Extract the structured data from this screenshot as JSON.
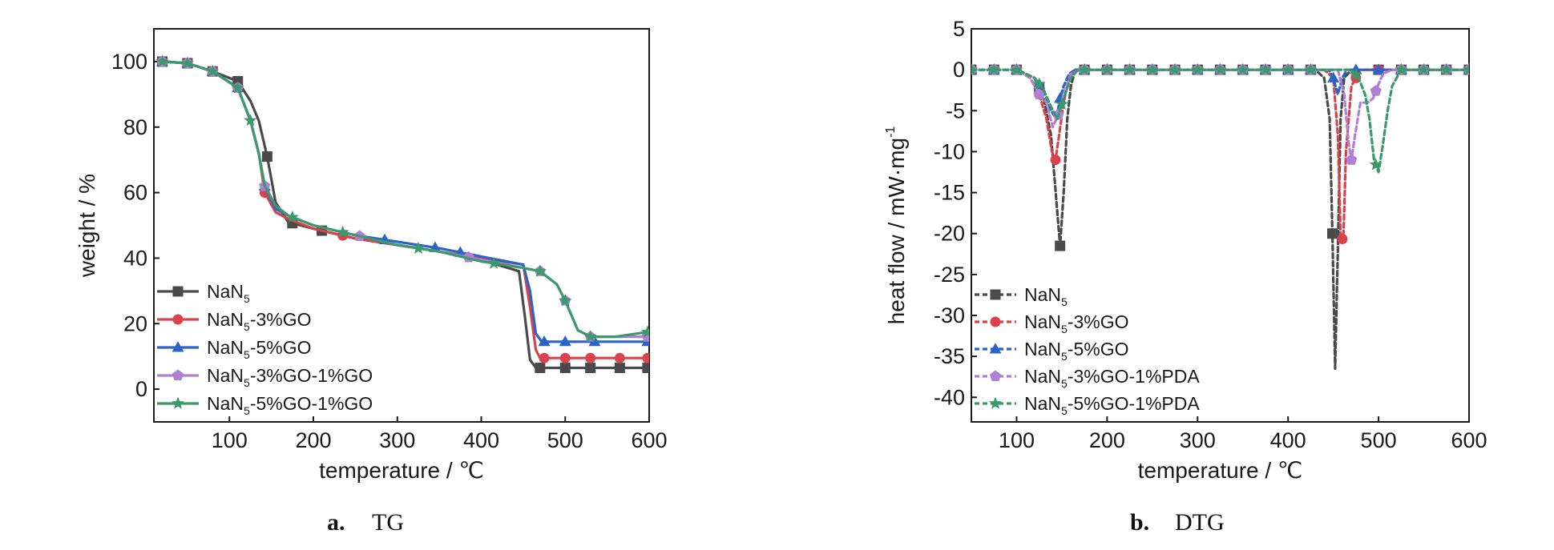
{
  "chart_data": [
    {
      "type": "line",
      "caption_letter": "a.",
      "caption_text": "TG",
      "xlabel": "temperature / ℃",
      "ylabel": "weight / %",
      "xlim": [
        10,
        600
      ],
      "ylim": [
        -10,
        110
      ],
      "xticks": [
        100,
        200,
        300,
        400,
        500,
        600
      ],
      "yticks": [
        0,
        20,
        40,
        60,
        80,
        100
      ],
      "legend_position": "bottom-left",
      "series": [
        {
          "base": "NaN",
          "sub": "5",
          "suffix": "",
          "color": "#4a4a4a",
          "marker": "square",
          "x": [
            20,
            50,
            80,
            110,
            125,
            135,
            145,
            155,
            170,
            200,
            250,
            300,
            350,
            400,
            445,
            452,
            458,
            465,
            480,
            520,
            560,
            600
          ],
          "y": [
            100,
            99.5,
            97,
            94,
            88,
            82,
            71,
            57,
            51,
            49,
            46,
            44,
            42,
            39.5,
            36,
            22,
            9,
            6.5,
            6.5,
            6.5,
            6.5,
            6.5
          ],
          "markers_x": [
            20,
            50,
            80,
            110,
            145,
            175,
            210,
            470,
            500,
            530,
            565,
            598
          ]
        },
        {
          "base": "NaN",
          "sub": "5",
          "suffix": "-3%GO",
          "color": "#d9434b",
          "marker": "circle",
          "x": [
            20,
            50,
            80,
            110,
            125,
            135,
            142,
            155,
            170,
            200,
            250,
            300,
            350,
            400,
            450,
            458,
            465,
            470,
            490,
            530,
            570,
            600
          ],
          "y": [
            100,
            99.5,
            97,
            92,
            82,
            72,
            60,
            54,
            52,
            49,
            46,
            44,
            42,
            40,
            38,
            25,
            12,
            9.5,
            9.5,
            9.5,
            9.5,
            9.5
          ],
          "markers_x": [
            20,
            50,
            80,
            110,
            142,
            235,
            475,
            500,
            530,
            565,
            598
          ]
        },
        {
          "base": "NaN",
          "sub": "5",
          "suffix": "-5%GO",
          "color": "#2b64c8",
          "marker": "triangle",
          "x": [
            20,
            50,
            80,
            110,
            125,
            135,
            142,
            155,
            170,
            200,
            250,
            300,
            350,
            400,
            450,
            458,
            465,
            472,
            500,
            540,
            580,
            600
          ],
          "y": [
            100,
            99.5,
            97,
            92,
            82,
            72,
            62,
            55,
            53,
            50,
            47,
            45,
            43,
            40.5,
            38,
            30,
            17,
            14.5,
            14.5,
            14.5,
            14.5,
            14.5
          ],
          "markers_x": [
            20,
            50,
            80,
            110,
            142,
            285,
            345,
            375,
            475,
            500,
            535,
            598
          ]
        },
        {
          "base": "NaN",
          "sub": "5",
          "suffix": "-3%GO-1%GO",
          "color": "#b07fd6",
          "marker": "pentagon",
          "x": [
            20,
            50,
            80,
            110,
            125,
            135,
            142,
            155,
            170,
            200,
            250,
            300,
            350,
            400,
            450,
            470,
            490,
            500,
            515,
            530,
            560,
            600
          ],
          "y": [
            100,
            99.5,
            97,
            92,
            82,
            72,
            62,
            56,
            53,
            50,
            47,
            44,
            42,
            39.5,
            37,
            36,
            32,
            27,
            18,
            16,
            16,
            16
          ],
          "markers_x": [
            20,
            50,
            80,
            110,
            142,
            255,
            385,
            470,
            500,
            530,
            598
          ]
        },
        {
          "base": "NaN",
          "sub": "5",
          "suffix": "-5%GO-1%GO",
          "color": "#3a9a6c",
          "marker": "star",
          "x": [
            20,
            50,
            80,
            110,
            125,
            135,
            142,
            155,
            170,
            200,
            250,
            300,
            350,
            400,
            450,
            470,
            490,
            500,
            515,
            530,
            560,
            600
          ],
          "y": [
            100,
            99.5,
            97,
            92,
            82,
            72,
            62,
            56,
            53,
            50,
            47,
            44,
            42,
            39,
            37,
            36,
            32,
            27,
            18,
            16,
            16,
            17.5
          ],
          "markers_x": [
            20,
            50,
            80,
            110,
            125,
            175,
            235,
            325,
            415,
            470,
            500,
            530,
            598
          ]
        }
      ]
    },
    {
      "type": "line",
      "caption_letter": "b.",
      "caption_text": "DTG",
      "xlabel": "temperature / ℃",
      "ylabel_main": "heat flow / mW·mg",
      "ylabel_sup": "-1",
      "xlim": [
        50,
        600
      ],
      "ylim": [
        -43,
        5
      ],
      "xticks": [
        100,
        200,
        300,
        400,
        500,
        600
      ],
      "yticks": [
        5,
        0,
        -5,
        -10,
        -15,
        -20,
        -25,
        -30,
        -35,
        -40
      ],
      "legend_position": "bottom-left",
      "series": [
        {
          "base": "NaN",
          "sub": "5",
          "suffix": "",
          "color": "#4a4a4a",
          "marker": "square",
          "x": [
            50,
            100,
            120,
            130,
            138,
            144,
            148,
            152,
            156,
            160,
            165,
            175,
            430,
            440,
            446,
            449,
            452,
            455,
            458,
            462,
            470,
            600
          ],
          "y": [
            0,
            0,
            -1,
            -3.5,
            -8,
            -16,
            -21.5,
            -15,
            -6,
            -2,
            0,
            0,
            0,
            -1,
            -6,
            -20,
            -36.5,
            -22,
            -6,
            -1,
            0,
            0
          ],
          "markers_x": [
            50,
            75,
            100,
            125,
            148,
            175,
            200,
            225,
            250,
            275,
            300,
            325,
            350,
            375,
            400,
            425,
            449,
            500,
            525,
            550,
            575,
            600
          ]
        },
        {
          "base": "NaN",
          "sub": "5",
          "suffix": "-3%GO",
          "color": "#d9434b",
          "marker": "circle",
          "x": [
            50,
            100,
            115,
            125,
            133,
            139,
            143,
            147,
            152,
            158,
            165,
            175,
            440,
            450,
            455,
            458,
            461,
            464,
            470,
            480,
            600
          ],
          "y": [
            0,
            0,
            -1,
            -3,
            -6,
            -10,
            -11,
            -8,
            -4,
            -1,
            0,
            0,
            0,
            -1,
            -8,
            -20,
            -21,
            -10,
            -2,
            0,
            0
          ],
          "markers_x": [
            50,
            75,
            100,
            125,
            143,
            175,
            200,
            225,
            250,
            275,
            300,
            325,
            350,
            375,
            400,
            425,
            460,
            475,
            500,
            525,
            550,
            575,
            600
          ]
        },
        {
          "base": "NaN",
          "sub": "5",
          "suffix": "-5%GO",
          "color": "#2b64c8",
          "marker": "triangle",
          "x": [
            50,
            100,
            120,
            130,
            138,
            144,
            148,
            152,
            158,
            165,
            175,
            445,
            450,
            455,
            460,
            465,
            475,
            600
          ],
          "y": [
            0,
            0,
            -1,
            -2.5,
            -5,
            -6,
            -3.5,
            -2,
            -0.5,
            0,
            0,
            0,
            -1,
            -3,
            -1,
            0,
            0,
            0
          ],
          "markers_x": [
            50,
            75,
            100,
            125,
            148,
            175,
            200,
            225,
            250,
            275,
            300,
            325,
            350,
            375,
            400,
            425,
            450,
            475,
            500,
            525,
            550,
            575,
            600
          ]
        },
        {
          "base": "NaN",
          "sub": "5",
          "suffix": "-3%GO-1%PDA",
          "color": "#b07fd6",
          "marker": "pentagon",
          "x": [
            50,
            100,
            115,
            125,
            133,
            140,
            146,
            152,
            160,
            170,
            455,
            462,
            467,
            470,
            474,
            480,
            488,
            494,
            499,
            505,
            515,
            600
          ],
          "y": [
            0,
            0,
            -1,
            -3,
            -4,
            -7,
            -5.5,
            -3,
            -0.5,
            0,
            0,
            -3,
            -9,
            -11,
            -8,
            -4,
            -4,
            -3.5,
            -2,
            -0.5,
            0,
            0
          ],
          "markers_x": [
            50,
            75,
            100,
            125,
            146,
            175,
            200,
            225,
            250,
            275,
            300,
            325,
            350,
            375,
            400,
            425,
            470,
            497,
            525,
            550,
            575,
            600
          ]
        },
        {
          "base": "NaN",
          "sub": "5",
          "suffix": "-5%GO-1%PDA",
          "color": "#3a9a6c",
          "marker": "star",
          "x": [
            50,
            100,
            120,
            130,
            138,
            145,
            152,
            160,
            168,
            175,
            470,
            478,
            485,
            490,
            495,
            500,
            505,
            510,
            515,
            525,
            600
          ],
          "y": [
            0,
            0,
            -1,
            -2.5,
            -4.5,
            -6,
            -3.5,
            -1,
            0,
            0,
            0,
            -1,
            -3,
            -6,
            -11,
            -12.5,
            -9,
            -5,
            -2,
            0,
            0
          ],
          "markers_x": [
            50,
            75,
            100,
            125,
            150,
            175,
            200,
            225,
            250,
            275,
            300,
            325,
            350,
            375,
            400,
            425,
            475,
            497,
            525,
            550,
            575,
            600
          ]
        }
      ]
    }
  ]
}
